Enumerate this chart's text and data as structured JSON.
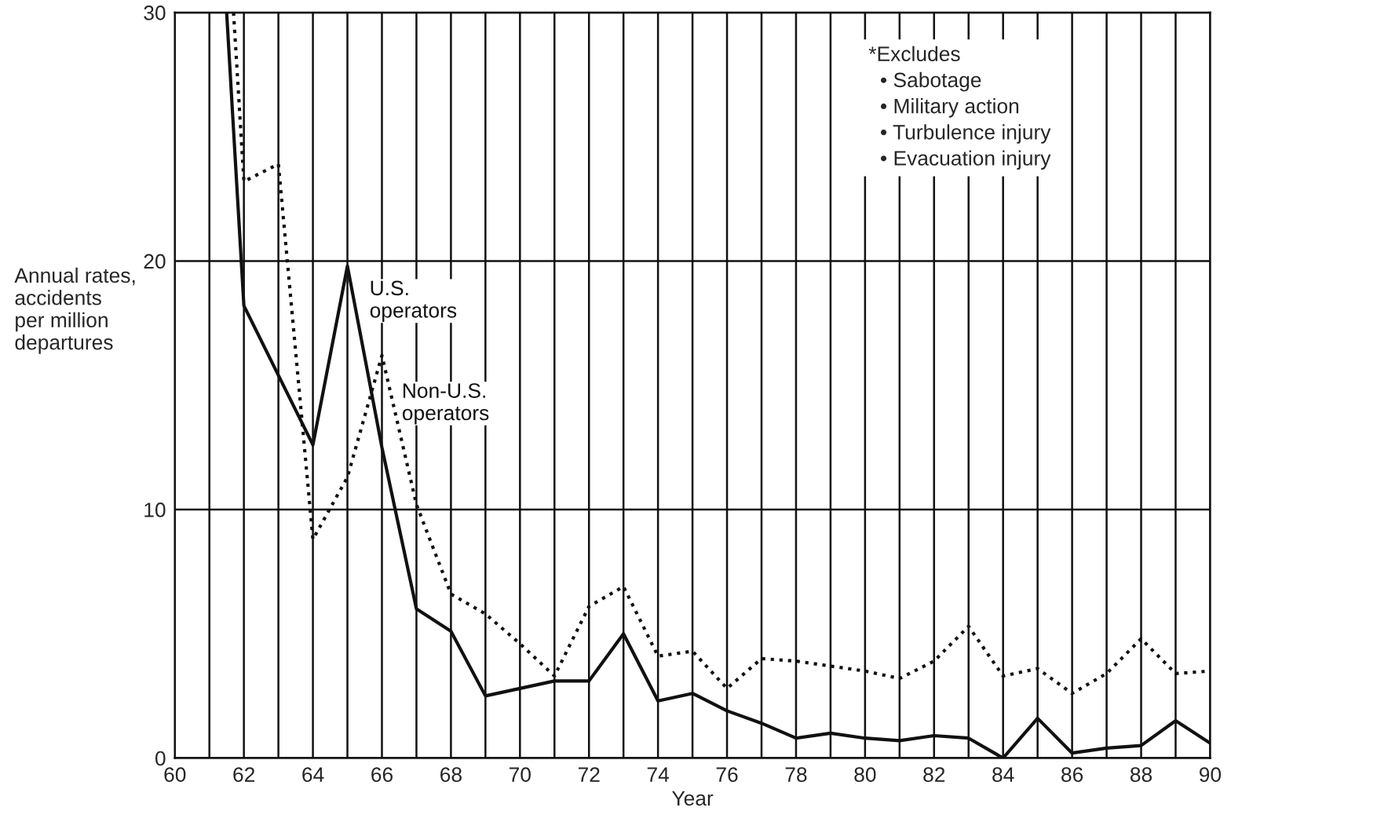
{
  "chart_data": {
    "type": "line",
    "xlabel": "Year",
    "ylabel": "Annual rates,\naccidents\nper million\ndepartures",
    "xlim": [
      60,
      90
    ],
    "ylim": [
      0,
      30
    ],
    "xticks": [
      60,
      {
        "value": 61,
        "label": null
      },
      62,
      {
        "value": 63,
        "label": null
      },
      64,
      {
        "value": 65,
        "label": null
      },
      66,
      {
        "value": 67,
        "label": null
      },
      68,
      {
        "value": 69,
        "label": null
      },
      70,
      {
        "value": 71,
        "label": null
      },
      72,
      {
        "value": 73,
        "label": null
      },
      74,
      {
        "value": 75,
        "label": null
      },
      76,
      {
        "value": 77,
        "label": null
      },
      78,
      {
        "value": 79,
        "label": null
      },
      80,
      {
        "value": 81,
        "label": null
      },
      82,
      {
        "value": 83,
        "label": null
      },
      84,
      {
        "value": 85,
        "label": null
      },
      86,
      {
        "value": 87,
        "label": null
      },
      88,
      {
        "value": 89,
        "label": null
      },
      90
    ],
    "yticks": [
      0,
      10,
      20,
      30
    ],
    "grid": true,
    "legend": false,
    "marker": "none",
    "series": [
      {
        "name": "U.S.\noperators",
        "color": "#111111",
        "line_style": "solid",
        "x": [
          61.5,
          62,
          64,
          65,
          66,
          67,
          68,
          69,
          70,
          71,
          72,
          73,
          74,
          75,
          76,
          77,
          78,
          79,
          80,
          81,
          82,
          83,
          84,
          85,
          86,
          87,
          88,
          89,
          90
        ],
        "values": [
          30,
          18.2,
          12.6,
          19.8,
          12.5,
          6.0,
          5.1,
          2.5,
          2.8,
          3.1,
          3.1,
          5.0,
          2.3,
          2.6,
          1.9,
          1.4,
          0.8,
          1.0,
          0.8,
          0.7,
          0.9,
          0.8,
          0.0,
          1.6,
          0.2,
          0.4,
          0.5,
          1.5,
          0.6
        ]
      },
      {
        "name": "Non-U.S.\noperators",
        "color": "#111111",
        "line_style": "dotted",
        "x": [
          61.7,
          62,
          63,
          64,
          65,
          66,
          67,
          68,
          69,
          70,
          71,
          72,
          73,
          74,
          75,
          76,
          77,
          78,
          79,
          80,
          81,
          82,
          83,
          84,
          85,
          86,
          87,
          88,
          89,
          90
        ],
        "values": [
          30,
          23.2,
          23.9,
          8.8,
          11.3,
          16.2,
          10.2,
          6.6,
          5.8,
          4.6,
          3.3,
          6.1,
          6.9,
          4.1,
          4.3,
          2.8,
          4.0,
          3.9,
          3.7,
          3.5,
          3.2,
          3.9,
          5.3,
          3.3,
          3.6,
          2.6,
          3.4,
          4.8,
          3.4,
          3.5
        ]
      }
    ],
    "annotations": [
      "*Excludes\n  • Sabotage\n  • Military action\n  • Turbulence injury\n  • Evacuation injury"
    ]
  }
}
